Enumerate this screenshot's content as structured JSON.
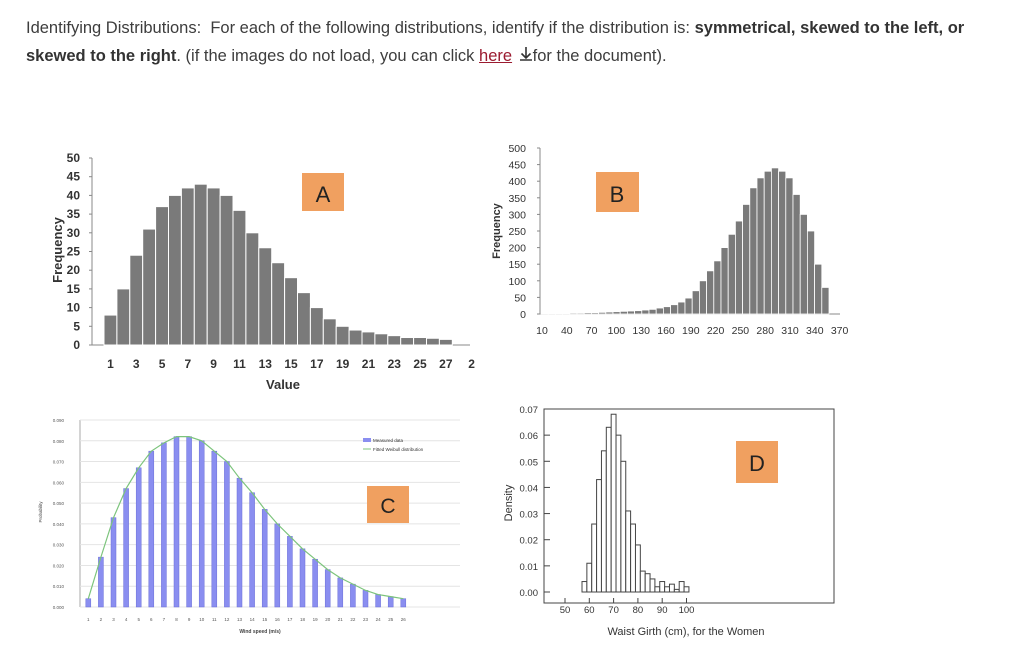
{
  "instructions": {
    "label": "Identifying Distributions:",
    "text1": "For each of the following distributions, identify if the distribution is:",
    "bold_options": "symmetrical, skewed to the left, or skewed to the right",
    "text2": ". (if the images do not load, you can click",
    "link_text": "here",
    "download_icon": "download-arrow-icon",
    "text3": "for the document)."
  },
  "chart_data": [
    {
      "type": "bar",
      "badge": "A",
      "ylabel": "Frequency",
      "xlabel": "Value",
      "yticks": [
        "50",
        "45",
        "40",
        "35",
        "30",
        "25",
        "20",
        "15",
        "10",
        "5",
        "0"
      ],
      "ylim": [
        0,
        50
      ],
      "xticks": [
        "1",
        "3",
        "5",
        "7",
        "9",
        "11",
        "13",
        "15",
        "17",
        "19",
        "21",
        "23",
        "25",
        "27",
        "2"
      ],
      "values": [
        8,
        15,
        24,
        31,
        37,
        40,
        42,
        43,
        42,
        40,
        36,
        30,
        26,
        22,
        18,
        14,
        10,
        7,
        5,
        4,
        3.5,
        3,
        2.5,
        2,
        2,
        1.8,
        1.5
      ],
      "bar_color": "#7a7a7a",
      "badge_color": "#f0a060"
    },
    {
      "type": "bar",
      "badge": "B",
      "ylabel": "Frequency",
      "xlabel": "",
      "yticks": [
        "500",
        "450",
        "400",
        "350",
        "300",
        "250",
        "200",
        "150",
        "100",
        "50",
        "0"
      ],
      "ylim": [
        0,
        500
      ],
      "xticks": [
        "10",
        "40",
        "70",
        "100",
        "130",
        "160",
        "190",
        "220",
        "250",
        "280",
        "310",
        "340",
        "370"
      ],
      "values": [
        1,
        1,
        2,
        2,
        3,
        3,
        4,
        4,
        5,
        6,
        7,
        8,
        9,
        10,
        12,
        14,
        18,
        22,
        28,
        36,
        48,
        70,
        100,
        130,
        160,
        200,
        240,
        280,
        330,
        380,
        410,
        430,
        440,
        430,
        410,
        360,
        300,
        250,
        150,
        80
      ],
      "bar_color": "#7a7a7a",
      "badge_color": "#f0a060"
    },
    {
      "type": "bar",
      "badge": "C",
      "ylabel": "Probability",
      "xlabel": "Wind speed (m/s)",
      "legend": [
        "Measured data",
        "Fitted Weibull distribution"
      ],
      "yticks": [
        "0.090",
        "0.080",
        "0.070",
        "0.060",
        "0.050",
        "0.040",
        "0.030",
        "0.020",
        "0.010",
        "0.000"
      ],
      "ylim": [
        0,
        0.09
      ],
      "xticks": [
        "1",
        "2",
        "3",
        "4",
        "5",
        "6",
        "7",
        "8",
        "9",
        "10",
        "11",
        "12",
        "13",
        "14",
        "15",
        "16",
        "17",
        "18",
        "19",
        "20",
        "21",
        "22",
        "23",
        "24",
        "25",
        "26"
      ],
      "values": [
        0.004,
        0.024,
        0.043,
        0.057,
        0.067,
        0.075,
        0.079,
        0.082,
        0.082,
        0.08,
        0.075,
        0.07,
        0.062,
        0.055,
        0.047,
        0.04,
        0.034,
        0.028,
        0.023,
        0.018,
        0.014,
        0.011,
        0.008,
        0.006,
        0.005,
        0.004
      ],
      "bar_color": "#8a8ef0",
      "line_color": "#7cc47c",
      "badge_color": "#f0a060"
    },
    {
      "type": "bar",
      "badge": "D",
      "ylabel": "Density",
      "xlabel": "Waist Girth (cm), for the Women",
      "yticks": [
        "0.07",
        "0.06",
        "0.05",
        "0.04",
        "0.03",
        "0.02",
        "0.01",
        "0.00"
      ],
      "ylim": [
        0,
        0.07
      ],
      "xticks": [
        "50",
        "60",
        "70",
        "80",
        "90",
        "100"
      ],
      "bin_start": 57,
      "bin_width": 2,
      "values": [
        0.004,
        0.011,
        0.026,
        0.043,
        0.054,
        0.063,
        0.068,
        0.06,
        0.05,
        0.031,
        0.026,
        0.018,
        0.008,
        0.007,
        0.005,
        0.002,
        0.004,
        0.002,
        0.003,
        0.001,
        0.004,
        0.002
      ],
      "bar_color": "#ffffff",
      "badge_color": "#f0a060"
    }
  ]
}
